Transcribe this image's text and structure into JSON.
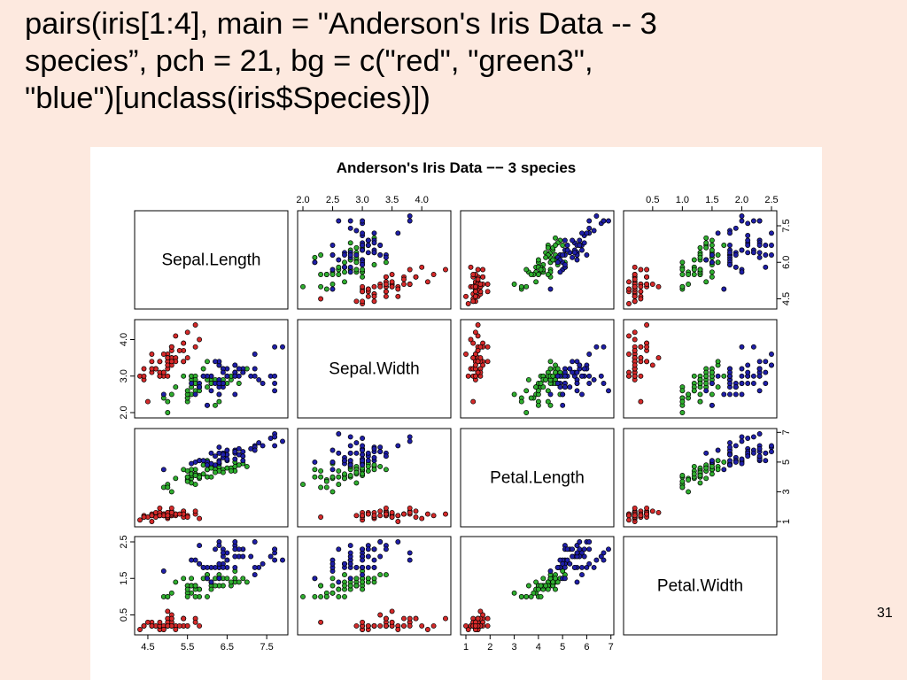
{
  "slide": {
    "code_line1": "pairs(iris[1:4], main = \"Anderson's Iris Data -- 3",
    "code_line2": "species”, pch = 21, bg = c(\"red\", \"green3\",",
    "code_line3": "\"blue\")[unclass(iris$Species)])",
    "slide_number": "31"
  },
  "chart_data": {
    "type": "scatter",
    "subtype": "scatterplot-matrix",
    "title": "Anderson's Iris Data −− 3 species",
    "variables": [
      "Sepal.Length",
      "Sepal.Width",
      "Petal.Length",
      "Petal.Width"
    ],
    "ranges": [
      [
        4.3,
        7.9
      ],
      [
        2.0,
        4.4
      ],
      [
        1.0,
        6.9
      ],
      [
        0.1,
        2.5
      ]
    ],
    "ticks": [
      [
        "4.5",
        "5.5",
        "6.5",
        "7.5"
      ],
      [
        "2.0",
        "2.5",
        "3.0",
        "3.5",
        "4.0"
      ],
      [
        "1",
        "2",
        "3",
        "4",
        "5",
        "6",
        "7"
      ],
      [
        "0.5",
        "1.0",
        "1.5",
        "2.0",
        "2.5"
      ]
    ],
    "left_ticks": [
      [
        "4.5",
        "6.0",
        "7.5"
      ],
      [
        "2.0",
        "3.0",
        "4.0"
      ],
      [
        "1",
        "3",
        "5",
        "7"
      ],
      [
        "0.5",
        "1.5",
        "2.5"
      ]
    ],
    "grid": false,
    "marker": "filled circle with black outline (pch 21)",
    "series": [
      {
        "color": "#d62a2a",
        "points": [
          [
            5.1,
            3.5,
            1.4,
            0.2
          ],
          [
            4.9,
            3.0,
            1.4,
            0.2
          ],
          [
            4.7,
            3.2,
            1.3,
            0.2
          ],
          [
            4.6,
            3.1,
            1.5,
            0.2
          ],
          [
            5.0,
            3.6,
            1.4,
            0.2
          ],
          [
            5.4,
            3.9,
            1.7,
            0.4
          ],
          [
            4.6,
            3.4,
            1.4,
            0.3
          ],
          [
            5.0,
            3.4,
            1.5,
            0.2
          ],
          [
            4.4,
            2.9,
            1.4,
            0.2
          ],
          [
            4.9,
            3.1,
            1.5,
            0.1
          ],
          [
            5.4,
            3.7,
            1.5,
            0.2
          ],
          [
            4.8,
            3.4,
            1.6,
            0.2
          ],
          [
            4.8,
            3.0,
            1.4,
            0.1
          ],
          [
            4.3,
            3.0,
            1.1,
            0.1
          ],
          [
            5.8,
            4.0,
            1.2,
            0.2
          ],
          [
            5.7,
            4.4,
            1.5,
            0.4
          ],
          [
            5.4,
            3.9,
            1.3,
            0.4
          ],
          [
            5.1,
            3.5,
            1.4,
            0.3
          ],
          [
            5.7,
            3.8,
            1.7,
            0.3
          ],
          [
            5.1,
            3.8,
            1.5,
            0.3
          ],
          [
            5.4,
            3.4,
            1.7,
            0.2
          ],
          [
            5.1,
            3.7,
            1.5,
            0.4
          ],
          [
            4.6,
            3.6,
            1.0,
            0.2
          ],
          [
            5.1,
            3.3,
            1.7,
            0.5
          ],
          [
            4.8,
            3.4,
            1.9,
            0.2
          ],
          [
            5.0,
            3.0,
            1.6,
            0.2
          ],
          [
            5.0,
            3.4,
            1.6,
            0.4
          ],
          [
            5.2,
            3.5,
            1.5,
            0.2
          ],
          [
            5.2,
            3.4,
            1.4,
            0.2
          ],
          [
            4.7,
            3.2,
            1.6,
            0.2
          ],
          [
            4.8,
            3.1,
            1.6,
            0.2
          ],
          [
            5.4,
            3.4,
            1.5,
            0.4
          ],
          [
            5.2,
            4.1,
            1.5,
            0.1
          ],
          [
            5.5,
            4.2,
            1.4,
            0.2
          ],
          [
            4.9,
            3.1,
            1.5,
            0.2
          ],
          [
            5.0,
            3.2,
            1.2,
            0.2
          ],
          [
            5.5,
            3.5,
            1.3,
            0.2
          ],
          [
            4.9,
            3.6,
            1.4,
            0.1
          ],
          [
            4.4,
            3.0,
            1.3,
            0.2
          ],
          [
            5.1,
            3.4,
            1.5,
            0.2
          ],
          [
            5.0,
            3.5,
            1.3,
            0.3
          ],
          [
            4.5,
            2.3,
            1.3,
            0.3
          ],
          [
            4.4,
            3.2,
            1.3,
            0.2
          ],
          [
            5.0,
            3.5,
            1.6,
            0.6
          ],
          [
            5.1,
            3.8,
            1.9,
            0.4
          ],
          [
            4.8,
            3.0,
            1.4,
            0.3
          ],
          [
            5.1,
            3.8,
            1.6,
            0.2
          ],
          [
            4.6,
            3.2,
            1.4,
            0.2
          ],
          [
            5.3,
            3.7,
            1.5,
            0.2
          ],
          [
            5.0,
            3.3,
            1.4,
            0.2
          ]
        ]
      },
      {
        "color": "#2fae2f",
        "points": [
          [
            7.0,
            3.2,
            4.7,
            1.4
          ],
          [
            6.4,
            3.2,
            4.5,
            1.5
          ],
          [
            6.9,
            3.1,
            4.9,
            1.5
          ],
          [
            5.5,
            2.3,
            4.0,
            1.3
          ],
          [
            6.5,
            2.8,
            4.6,
            1.5
          ],
          [
            5.7,
            2.8,
            4.5,
            1.3
          ],
          [
            6.3,
            3.3,
            4.7,
            1.6
          ],
          [
            4.9,
            2.4,
            3.3,
            1.0
          ],
          [
            6.6,
            2.9,
            4.6,
            1.3
          ],
          [
            5.2,
            2.7,
            3.9,
            1.4
          ],
          [
            5.0,
            2.0,
            3.5,
            1.0
          ],
          [
            5.9,
            3.0,
            4.2,
            1.5
          ],
          [
            6.0,
            2.2,
            4.0,
            1.0
          ],
          [
            6.1,
            2.9,
            4.7,
            1.4
          ],
          [
            5.6,
            2.9,
            3.6,
            1.3
          ],
          [
            6.7,
            3.1,
            4.4,
            1.4
          ],
          [
            5.6,
            3.0,
            4.5,
            1.5
          ],
          [
            5.8,
            2.7,
            4.1,
            1.0
          ],
          [
            6.2,
            2.2,
            4.5,
            1.5
          ],
          [
            5.6,
            2.5,
            3.9,
            1.1
          ],
          [
            5.9,
            3.2,
            4.8,
            1.8
          ],
          [
            6.1,
            2.8,
            4.0,
            1.3
          ],
          [
            6.3,
            2.5,
            4.9,
            1.5
          ],
          [
            6.1,
            2.8,
            4.7,
            1.2
          ],
          [
            6.4,
            2.9,
            4.3,
            1.3
          ],
          [
            6.6,
            3.0,
            4.4,
            1.4
          ],
          [
            6.8,
            2.8,
            4.8,
            1.4
          ],
          [
            6.7,
            3.0,
            5.0,
            1.7
          ],
          [
            6.0,
            2.9,
            4.5,
            1.5
          ],
          [
            5.7,
            2.6,
            3.5,
            1.0
          ],
          [
            5.5,
            2.4,
            3.8,
            1.1
          ],
          [
            5.5,
            2.4,
            3.7,
            1.0
          ],
          [
            5.8,
            2.7,
            3.9,
            1.2
          ],
          [
            6.0,
            2.7,
            5.1,
            1.6
          ],
          [
            5.4,
            3.0,
            4.5,
            1.5
          ],
          [
            6.0,
            3.4,
            4.5,
            1.6
          ],
          [
            6.7,
            3.1,
            4.7,
            1.5
          ],
          [
            6.3,
            2.3,
            4.4,
            1.3
          ],
          [
            5.6,
            3.0,
            4.1,
            1.3
          ],
          [
            5.5,
            2.5,
            4.0,
            1.3
          ],
          [
            5.5,
            2.6,
            4.4,
            1.2
          ],
          [
            6.1,
            3.0,
            4.6,
            1.4
          ],
          [
            5.8,
            2.6,
            4.0,
            1.2
          ],
          [
            5.0,
            2.3,
            3.3,
            1.0
          ],
          [
            5.6,
            2.7,
            4.2,
            1.3
          ],
          [
            5.7,
            3.0,
            4.2,
            1.2
          ],
          [
            5.7,
            2.9,
            4.2,
            1.3
          ],
          [
            6.2,
            2.9,
            4.3,
            1.3
          ],
          [
            5.1,
            2.5,
            3.0,
            1.1
          ],
          [
            5.7,
            2.8,
            4.1,
            1.3
          ]
        ]
      },
      {
        "color": "#1f1fa8",
        "points": [
          [
            6.3,
            3.3,
            6.0,
            2.5
          ],
          [
            5.8,
            2.7,
            5.1,
            1.9
          ],
          [
            7.1,
            3.0,
            5.9,
            2.1
          ],
          [
            6.3,
            2.9,
            5.6,
            1.8
          ],
          [
            6.5,
            3.0,
            5.8,
            2.2
          ],
          [
            7.6,
            3.0,
            6.6,
            2.1
          ],
          [
            4.9,
            2.5,
            4.5,
            1.7
          ],
          [
            7.3,
            2.9,
            6.3,
            1.8
          ],
          [
            6.7,
            2.5,
            5.8,
            1.8
          ],
          [
            7.2,
            3.6,
            6.1,
            2.5
          ],
          [
            6.5,
            3.2,
            5.1,
            2.0
          ],
          [
            6.4,
            2.7,
            5.3,
            1.9
          ],
          [
            6.8,
            3.0,
            5.5,
            2.1
          ],
          [
            5.7,
            2.5,
            5.0,
            2.0
          ],
          [
            5.8,
            2.8,
            5.1,
            2.4
          ],
          [
            6.4,
            3.2,
            5.3,
            2.3
          ],
          [
            6.5,
            3.0,
            5.5,
            1.8
          ],
          [
            7.7,
            3.8,
            6.7,
            2.2
          ],
          [
            7.7,
            2.6,
            6.9,
            2.3
          ],
          [
            6.0,
            2.2,
            5.0,
            1.5
          ],
          [
            6.9,
            3.2,
            5.7,
            2.3
          ],
          [
            5.6,
            2.8,
            4.9,
            2.0
          ],
          [
            7.7,
            2.8,
            6.7,
            2.0
          ],
          [
            6.3,
            2.7,
            4.9,
            1.8
          ],
          [
            6.7,
            3.3,
            5.7,
            2.1
          ],
          [
            7.2,
            3.2,
            6.0,
            1.8
          ],
          [
            6.2,
            2.8,
            4.8,
            1.8
          ],
          [
            6.1,
            3.0,
            4.9,
            1.8
          ],
          [
            6.4,
            2.8,
            5.6,
            2.1
          ],
          [
            7.2,
            3.0,
            5.8,
            1.6
          ],
          [
            7.4,
            2.8,
            6.1,
            1.9
          ],
          [
            7.9,
            3.8,
            6.4,
            2.0
          ],
          [
            6.4,
            2.8,
            5.6,
            2.2
          ],
          [
            6.3,
            2.8,
            5.1,
            1.5
          ],
          [
            6.1,
            2.6,
            5.6,
            1.4
          ],
          [
            7.7,
            3.0,
            6.1,
            2.3
          ],
          [
            6.3,
            3.4,
            5.6,
            2.4
          ],
          [
            6.4,
            3.1,
            5.5,
            1.8
          ],
          [
            6.0,
            3.0,
            4.8,
            1.8
          ],
          [
            6.9,
            3.1,
            5.4,
            2.1
          ],
          [
            6.7,
            3.1,
            5.6,
            2.4
          ],
          [
            6.9,
            3.1,
            5.1,
            2.3
          ],
          [
            5.8,
            2.7,
            5.1,
            1.9
          ],
          [
            6.8,
            3.2,
            5.9,
            2.3
          ],
          [
            6.7,
            3.3,
            5.7,
            2.5
          ],
          [
            6.7,
            3.0,
            5.2,
            2.3
          ],
          [
            6.3,
            2.5,
            5.0,
            1.9
          ],
          [
            6.5,
            3.0,
            5.2,
            2.0
          ],
          [
            6.2,
            3.4,
            5.4,
            2.3
          ],
          [
            5.9,
            3.0,
            5.1,
            1.8
          ]
        ]
      }
    ]
  }
}
